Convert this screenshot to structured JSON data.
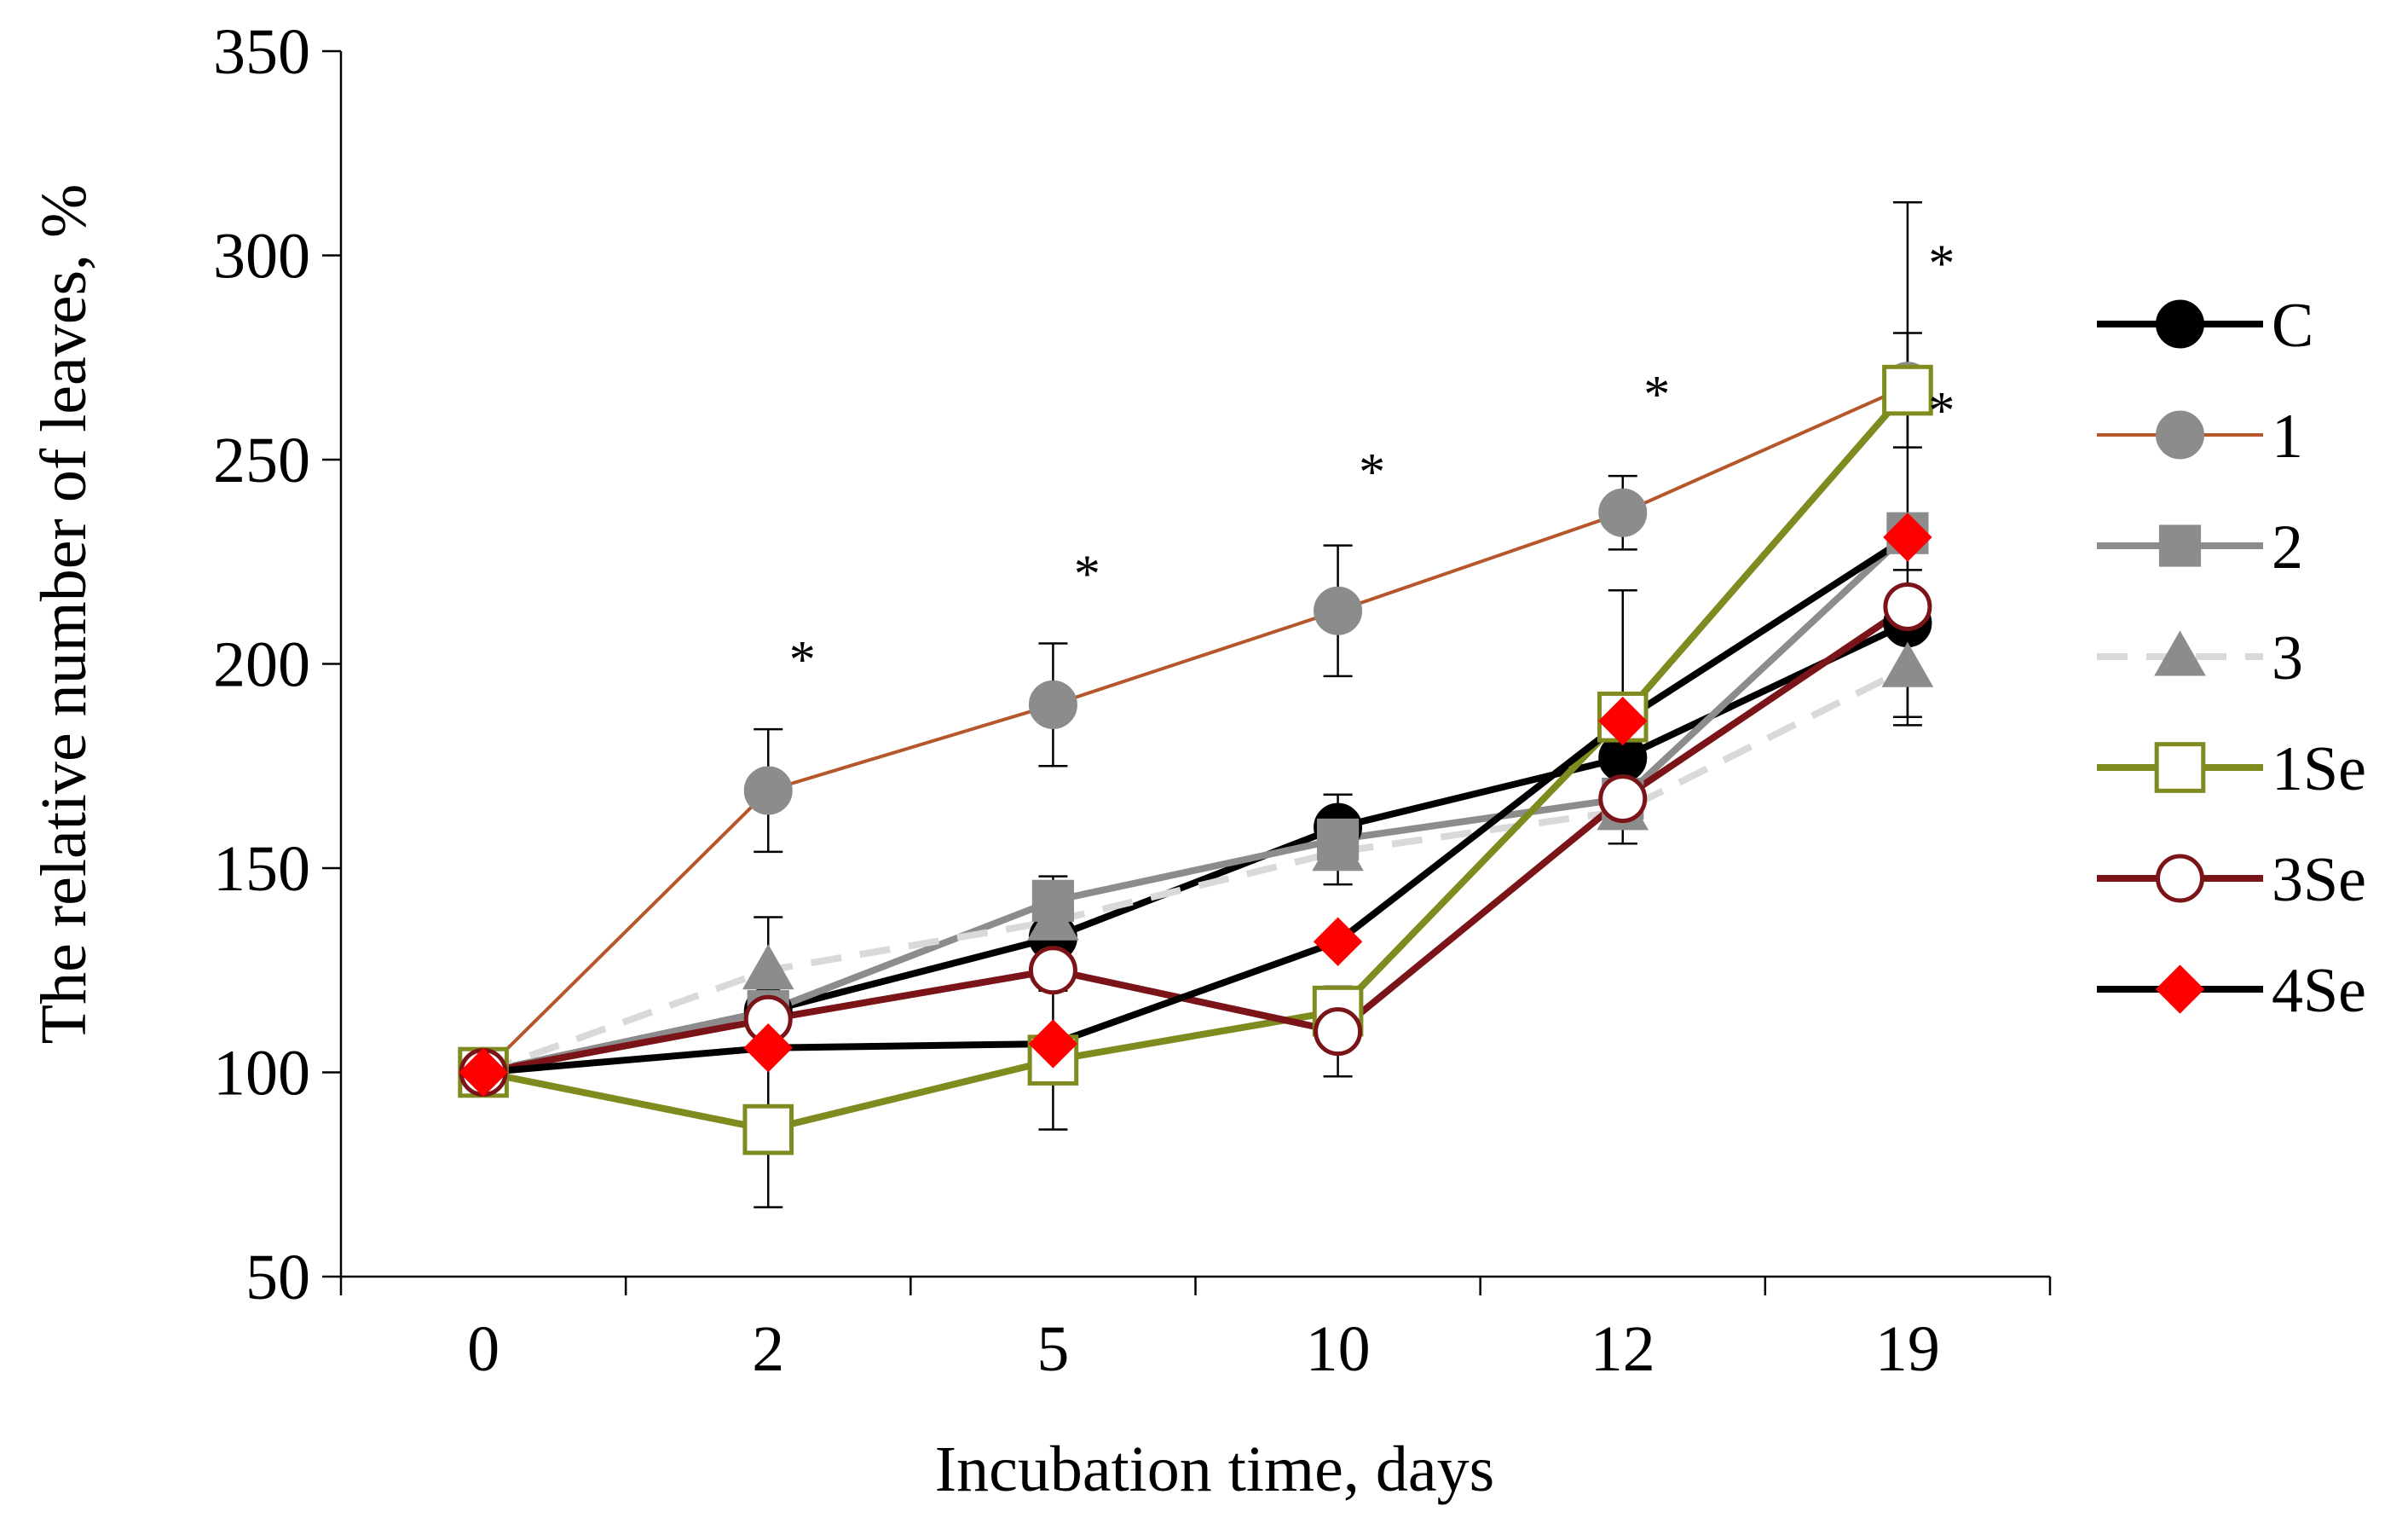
{
  "chart_data": {
    "type": "line",
    "title": "",
    "xlabel": "Incubation time, days",
    "ylabel": "The relative number of leaves, %",
    "categories": [
      "0",
      "2",
      "5",
      "10",
      "12",
      "19"
    ],
    "yticks": [
      "50",
      "100",
      "150",
      "200",
      "250",
      "300",
      "350"
    ],
    "ylim": [
      50,
      350
    ],
    "grid": false,
    "legend": "right",
    "series": [
      {
        "name": "C",
        "values": [
          100,
          115,
          133,
          160,
          177,
          210
        ],
        "errors": [
          null,
          null,
          null,
          8,
          null,
          25
        ],
        "color": "#000000",
        "marker": "circle-filled",
        "markerFill": "#000000",
        "markerStroke": "#000000",
        "dash": false,
        "width": "thick"
      },
      {
        "name": "1",
        "values": [
          100,
          169,
          190,
          213,
          237,
          268
        ],
        "errors": [
          null,
          15,
          15,
          16,
          9,
          45
        ],
        "color": "#b5562b",
        "marker": "circle-filled",
        "markerFill": "#8c8c8c",
        "markerStroke": "#8c8c8c",
        "dash": false,
        "width": "thin"
      },
      {
        "name": "2",
        "values": [
          100,
          115,
          142,
          157,
          167,
          232
        ],
        "errors": [
          null,
          null,
          6,
          null,
          null,
          null
        ],
        "color": "#8c8c8c",
        "marker": "square-filled",
        "markerFill": "#8c8c8c",
        "markerStroke": "#8c8c8c",
        "dash": false,
        "width": "thick"
      },
      {
        "name": "3",
        "values": [
          100,
          125,
          137,
          154,
          164,
          199
        ],
        "errors": [
          null,
          13,
          null,
          8,
          8,
          12
        ],
        "color": "#d9d9d9",
        "marker": "triangle-filled",
        "markerFill": "#8c8c8c",
        "markerStroke": "#8c8c8c",
        "dash": true,
        "width": "thick"
      },
      {
        "name": "1Se",
        "values": [
          100,
          86,
          103,
          115,
          187,
          267
        ],
        "errors": [
          null,
          19,
          17,
          null,
          31,
          14
        ],
        "color": "#7f8a1f",
        "marker": "square-open",
        "markerFill": "#ffffff",
        "markerStroke": "#7f8a1f",
        "dash": false,
        "width": "thick"
      },
      {
        "name": "3Se",
        "values": [
          100,
          113,
          125,
          110,
          167,
          214
        ],
        "errors": [
          null,
          null,
          null,
          11,
          null,
          null
        ],
        "color": "#7a1418",
        "marker": "circle-open",
        "markerFill": "#ffffff",
        "markerStroke": "#7a1418",
        "dash": false,
        "width": "thick"
      },
      {
        "name": "4Se",
        "values": [
          100,
          106,
          107,
          132,
          186,
          231
        ],
        "errors": [
          null,
          null,
          null,
          null,
          null,
          null
        ],
        "color": "#000000",
        "marker": "diamond-filled",
        "markerFill": "#ff0000",
        "markerStroke": "#ff0000",
        "dash": false,
        "width": "thick"
      }
    ],
    "annotations": [
      {
        "text": "*",
        "x": "2",
        "y": 203
      },
      {
        "text": "*",
        "x": "5",
        "y": 224
      },
      {
        "text": "*",
        "x": "10",
        "y": 249
      },
      {
        "text": "*",
        "x": "12",
        "y": 268
      },
      {
        "text": "*",
        "x": "19",
        "y": 300
      },
      {
        "text": "*",
        "x": "19",
        "y": 264
      }
    ]
  }
}
